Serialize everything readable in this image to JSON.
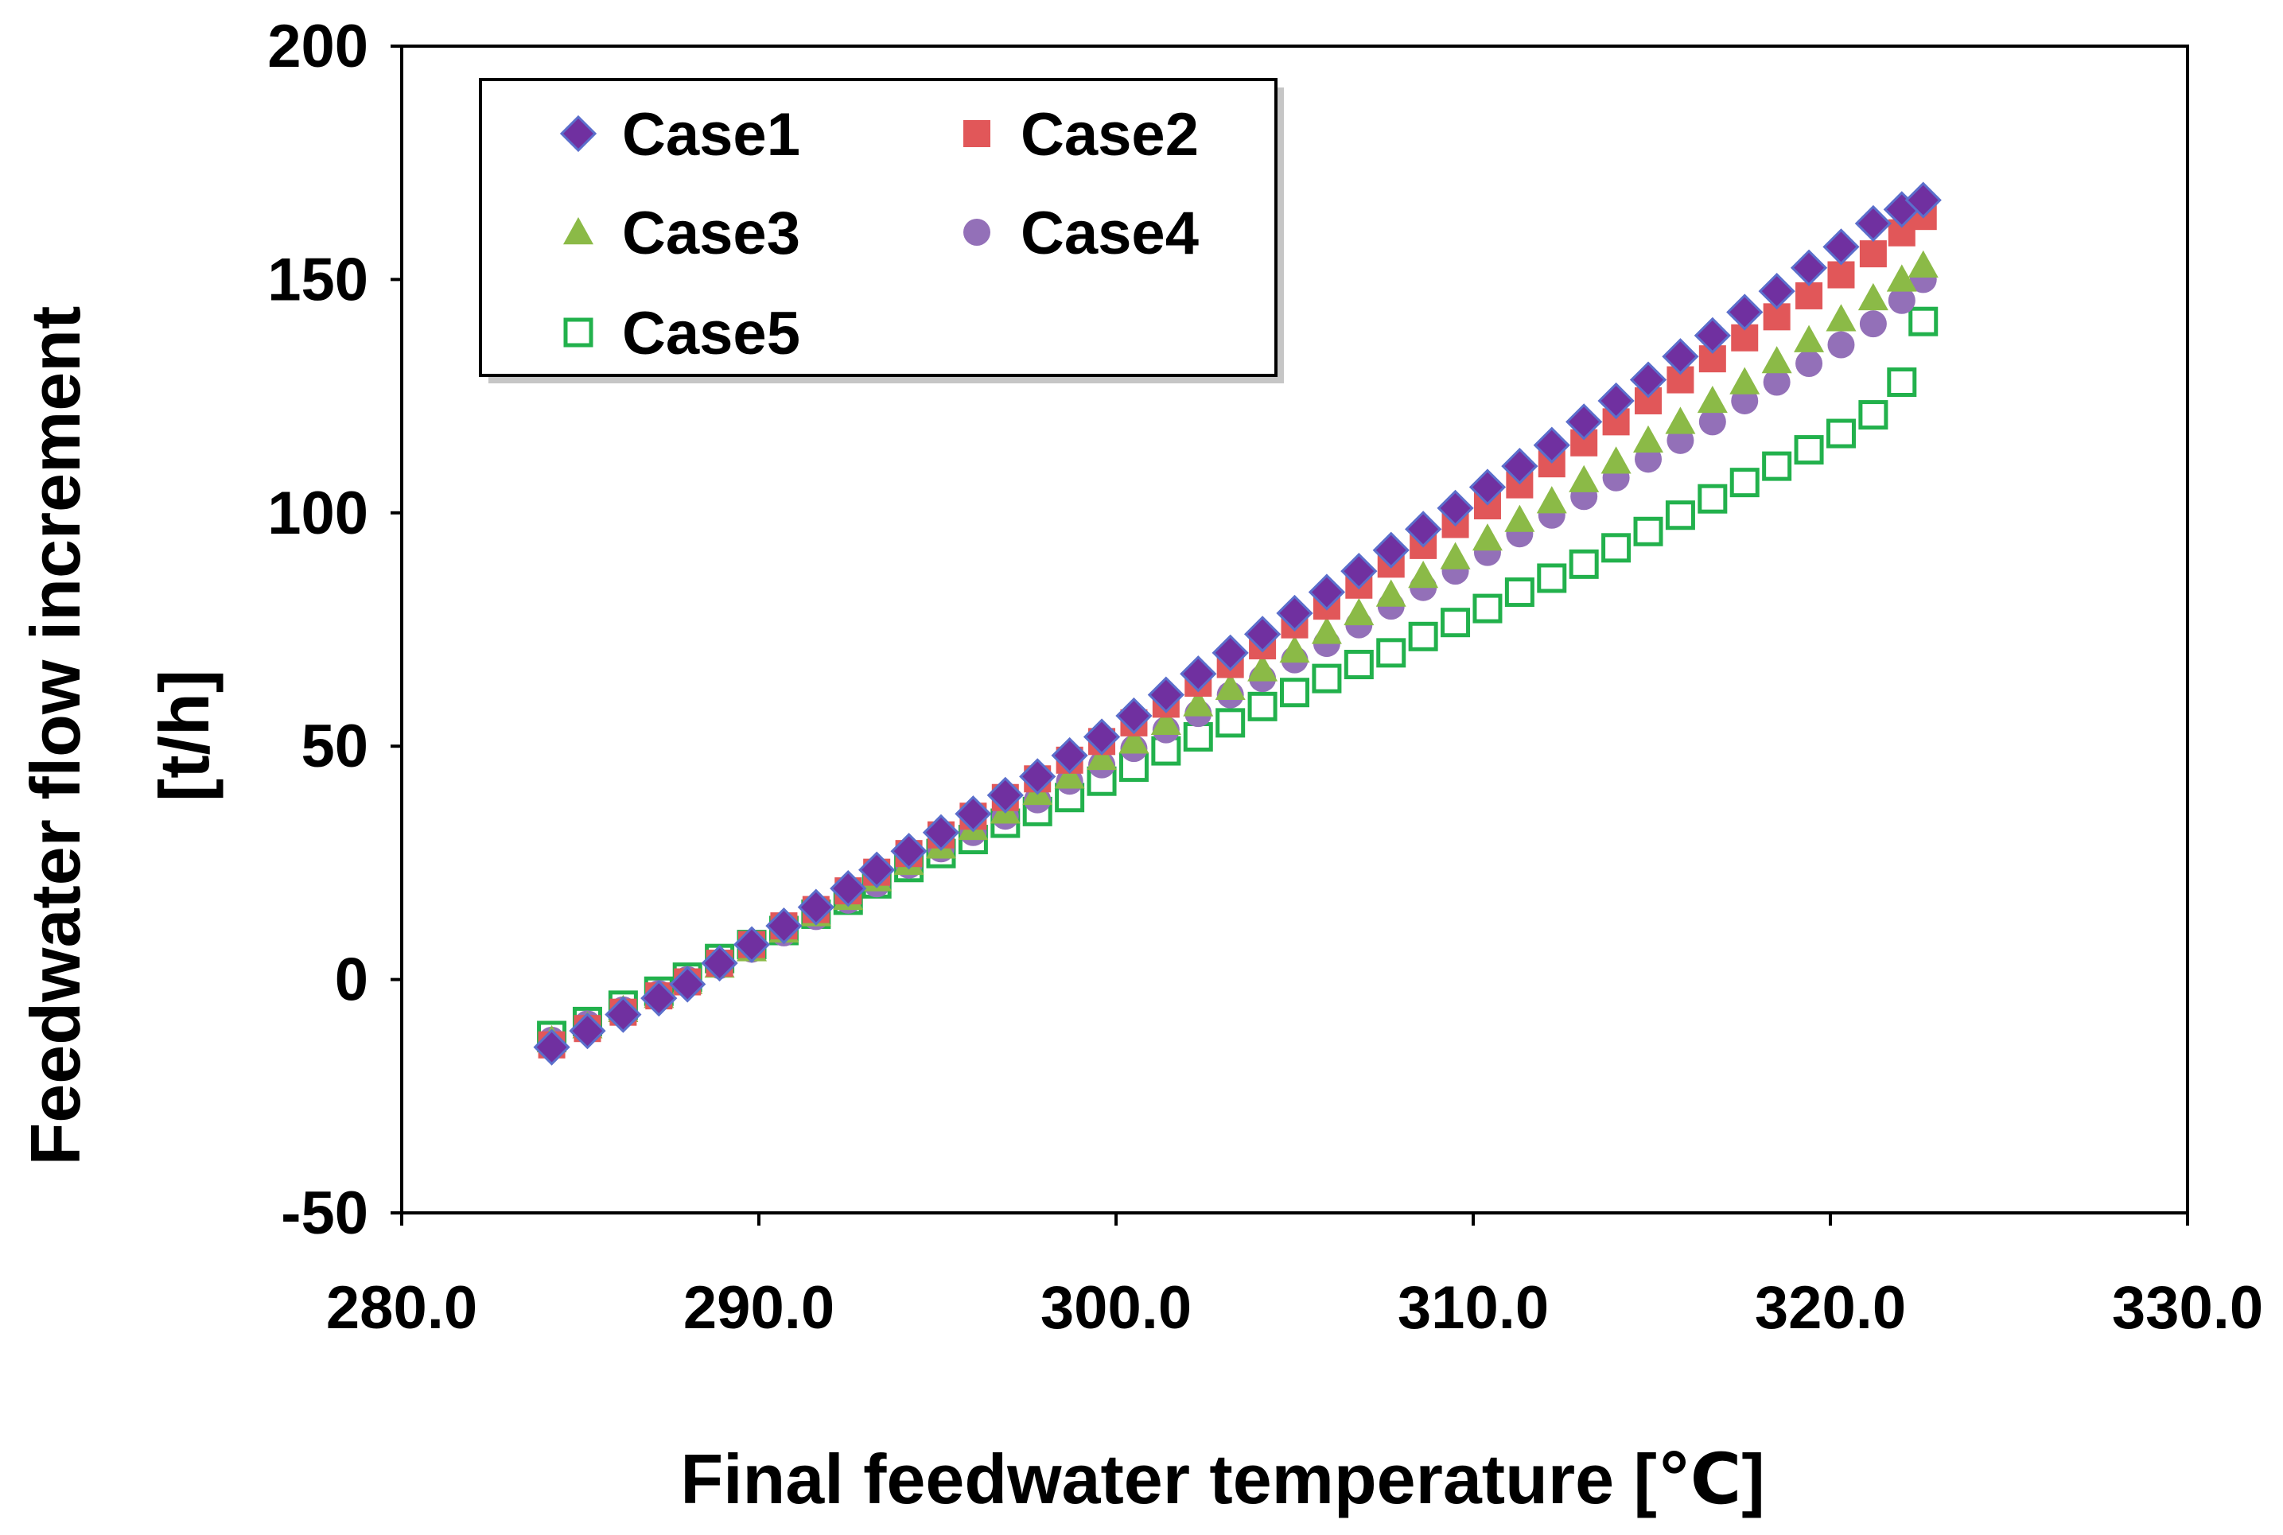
{
  "chart_data": {
    "type": "scatter",
    "title": "",
    "xlabel": "Final feedwater temperature [℃]",
    "ylabel_line1": "Feedwater flow increment",
    "ylabel_line2": "[t/h]",
    "xlim": [
      280.0,
      330.0
    ],
    "ylim": [
      -50,
      200
    ],
    "xticks": [
      280.0,
      290.0,
      300.0,
      310.0,
      320.0,
      330.0
    ],
    "xtick_labels": [
      "280.0",
      "290.0",
      "300.0",
      "310.0",
      "320.0",
      "330.0"
    ],
    "yticks": [
      -50,
      0,
      50,
      100,
      150,
      200
    ],
    "ytick_labels": [
      "-50",
      "0",
      "50",
      "100",
      "150",
      "200"
    ],
    "grid": false,
    "legend_position": "top-left",
    "x": [
      284.2,
      285.2,
      286.2,
      287.2,
      288.0,
      288.9,
      289.8,
      290.7,
      291.6,
      292.5,
      293.3,
      294.2,
      295.1,
      296.0,
      296.9,
      297.8,
      298.7,
      299.6,
      300.5,
      301.4,
      302.3,
      303.2,
      304.1,
      305.0,
      305.9,
      306.8,
      307.7,
      308.6,
      309.5,
      310.4,
      311.3,
      312.2,
      313.1,
      314.0,
      314.9,
      315.8,
      316.7,
      317.6,
      318.5,
      319.4,
      320.3,
      321.2,
      322.0,
      322.6
    ],
    "series": [
      {
        "name": "Case1",
        "marker": "diamond",
        "color": "#7030A0",
        "stroke": "#5B6FCC",
        "filled": true,
        "values": [
          -14.5,
          -11.0,
          -7.5,
          -4.0,
          -1.0,
          3.5,
          7.5,
          11.5,
          15.5,
          19.5,
          23.5,
          27.5,
          31.5,
          35.5,
          39.5,
          43.5,
          48.0,
          52.0,
          56.5,
          61.0,
          65.5,
          70.0,
          74.0,
          78.5,
          83.0,
          87.5,
          92.0,
          96.5,
          101.0,
          105.5,
          110.0,
          114.5,
          119.5,
          124.0,
          128.5,
          133.5,
          138.0,
          143.0,
          147.5,
          152.5,
          157.0,
          162.0,
          165.0,
          167.0
        ]
      },
      {
        "name": "Case2",
        "marker": "square",
        "color": "#E15759",
        "filled": true,
        "values": [
          -14.0,
          -10.5,
          -7.0,
          -3.5,
          -0.5,
          3.5,
          7.5,
          11.5,
          15.0,
          19.0,
          23.0,
          27.0,
          31.0,
          35.0,
          39.0,
          43.0,
          47.0,
          51.0,
          55.0,
          59.0,
          63.5,
          67.5,
          71.5,
          76.0,
          80.0,
          84.5,
          89.0,
          93.0,
          97.5,
          101.5,
          106.0,
          110.5,
          115.0,
          119.5,
          124.0,
          128.5,
          133.0,
          137.5,
          142.0,
          146.5,
          151.0,
          155.5,
          160.0,
          163.5
        ]
      },
      {
        "name": "Case3",
        "marker": "triangle",
        "color": "#8BBA47",
        "filled": true,
        "values": [
          -13.0,
          -10.0,
          -6.5,
          -3.5,
          -0.5,
          3.0,
          6.5,
          10.5,
          14.0,
          17.5,
          21.5,
          25.0,
          28.5,
          32.5,
          36.0,
          40.0,
          43.5,
          47.5,
          51.0,
          55.0,
          59.0,
          62.5,
          66.5,
          70.5,
          74.5,
          78.5,
          82.5,
          86.5,
          90.5,
          94.5,
          98.5,
          102.5,
          107.0,
          111.0,
          115.5,
          119.5,
          124.0,
          128.0,
          132.5,
          137.0,
          141.5,
          146.0,
          150.0,
          153.0
        ]
      },
      {
        "name": "Case4",
        "marker": "circle",
        "color": "#9370B8",
        "filled": true,
        "values": [
          -13.0,
          -9.5,
          -6.5,
          -3.0,
          0.0,
          3.0,
          6.5,
          10.0,
          13.5,
          17.0,
          20.5,
          24.5,
          28.0,
          31.5,
          35.0,
          38.5,
          42.5,
          46.0,
          49.5,
          53.5,
          57.0,
          61.0,
          64.5,
          68.5,
          72.0,
          76.0,
          80.0,
          84.0,
          87.5,
          91.5,
          95.5,
          99.5,
          103.5,
          107.5,
          111.5,
          115.5,
          119.5,
          124.0,
          128.0,
          132.0,
          136.0,
          140.5,
          145.5,
          150.0
        ]
      },
      {
        "name": "Case5",
        "marker": "square-open",
        "color": "#22B14C",
        "filled": false,
        "values": [
          -12.0,
          -9.0,
          -5.5,
          -2.5,
          0.5,
          4.5,
          7.5,
          10.5,
          14.0,
          17.0,
          20.5,
          24.0,
          27.0,
          30.0,
          33.5,
          36.0,
          39.0,
          42.5,
          45.5,
          49.0,
          52.0,
          55.0,
          58.5,
          61.5,
          64.5,
          67.5,
          70.0,
          73.5,
          76.5,
          79.5,
          83.0,
          86.0,
          89.0,
          92.5,
          96.0,
          99.5,
          103.0,
          106.5,
          110.0,
          113.5,
          117.0,
          121.0,
          128.0,
          141.0
        ]
      }
    ]
  }
}
